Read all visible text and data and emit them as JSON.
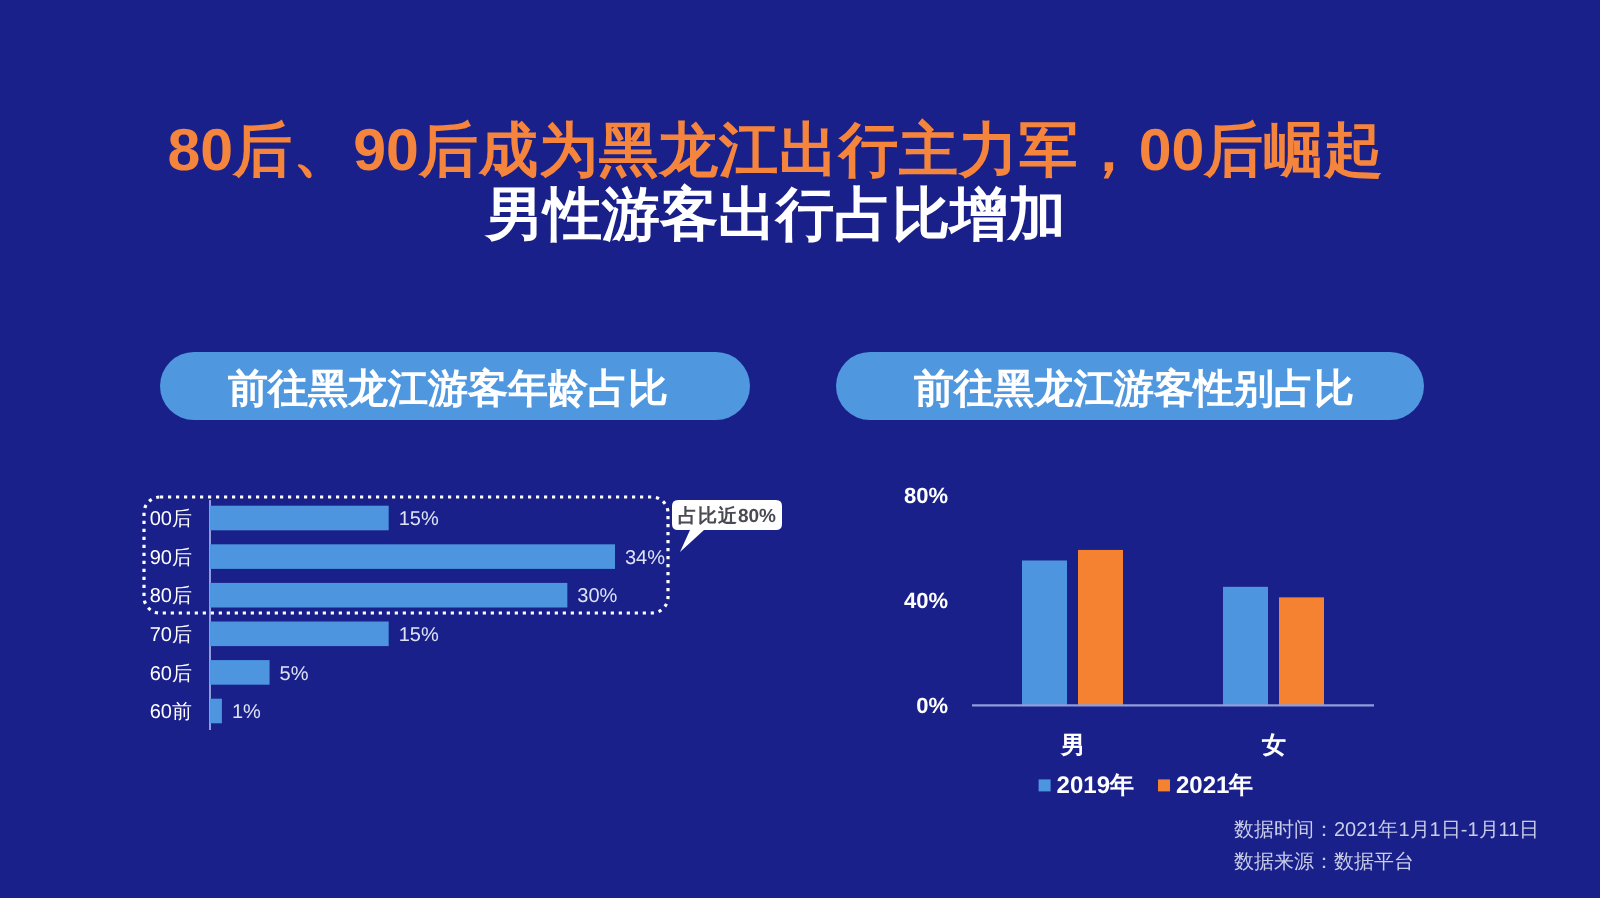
{
  "chart_data": [
    {
      "type": "other",
      "title": "80后、90后成为黑龙江出行主力军，00后崛起",
      "subtitle": "男性游客出行占比增加",
      "annotations": [
        "数据时间：2021年1月1日-1月11日",
        "数据来源：数据平台"
      ]
    },
    {
      "type": "bar",
      "orientation": "horizontal",
      "title": "前往黑龙江游客年龄占比",
      "categories": [
        "00后",
        "90后",
        "80后",
        "70后",
        "60后",
        "60前"
      ],
      "values": [
        15,
        34,
        30,
        15,
        5,
        1
      ],
      "color": "#4e95df",
      "value_labels": [
        "15%",
        "34%",
        "30%",
        "15%",
        "5%",
        "1%"
      ],
      "annotations": [
        "占比近80%"
      ]
    },
    {
      "type": "bar",
      "title": "前往黑龙江游客性别占比",
      "categories": [
        "男",
        "女"
      ],
      "series": [
        {
          "name": "2019年",
          "color": "#4e95df",
          "values": [
            55,
            45
          ]
        },
        {
          "name": "2021年",
          "color": "#f58230",
          "values": [
            59,
            41
          ]
        }
      ],
      "ylim": [
        0,
        80
      ],
      "yticks": [
        {
          "value": 0,
          "label": "0%"
        },
        {
          "value": 40,
          "label": "40%"
        },
        {
          "value": 80,
          "label": "80%"
        }
      ],
      "legend": "bottom"
    }
  ]
}
